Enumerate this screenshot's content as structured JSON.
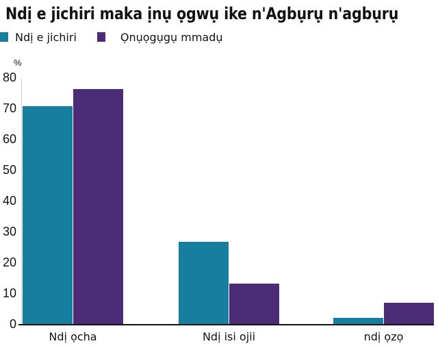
{
  "title": "Ndị e jichiri maka ịnụ ọgwụ ike n'Agbụrụ n'agbụrụ",
  "legend": [
    {
      "label": "Ndị e jichiri",
      "color": "#167fa0"
    },
    {
      "label": "Ọnụọgụgụ mmadụ",
      "color": "#4d2c77"
    }
  ],
  "unit_label": "%",
  "y_ticks": [
    "0",
    "10",
    "20",
    "30",
    "40",
    "50",
    "60",
    "70",
    "80"
  ],
  "categories": [
    "Ndị ọcha",
    "Ndị isi ojii",
    "ndị ọzọ"
  ],
  "chart_data": {
    "type": "bar",
    "title": "Ndị e jichiri maka ịnụ ọgwụ ike n'Agbụrụ n'agbụrụ",
    "xlabel": "",
    "ylabel": "%",
    "ylim": [
      0,
      80
    ],
    "y_ticks": [
      0,
      10,
      20,
      30,
      40,
      50,
      60,
      70,
      80
    ],
    "grid": false,
    "legend_position": "top-left",
    "categories": [
      "Ndị ọcha",
      "Ndị isi ojii",
      "ndị ọzọ"
    ],
    "series": [
      {
        "name": "Ndị e jichiri",
        "color": "#167fa0",
        "values": [
          70.8,
          27,
          2.2
        ]
      },
      {
        "name": "Ọnụọgụgụ mmadụ",
        "color": "#4d2c77",
        "values": [
          76.4,
          13.4,
          7.1
        ]
      }
    ]
  }
}
